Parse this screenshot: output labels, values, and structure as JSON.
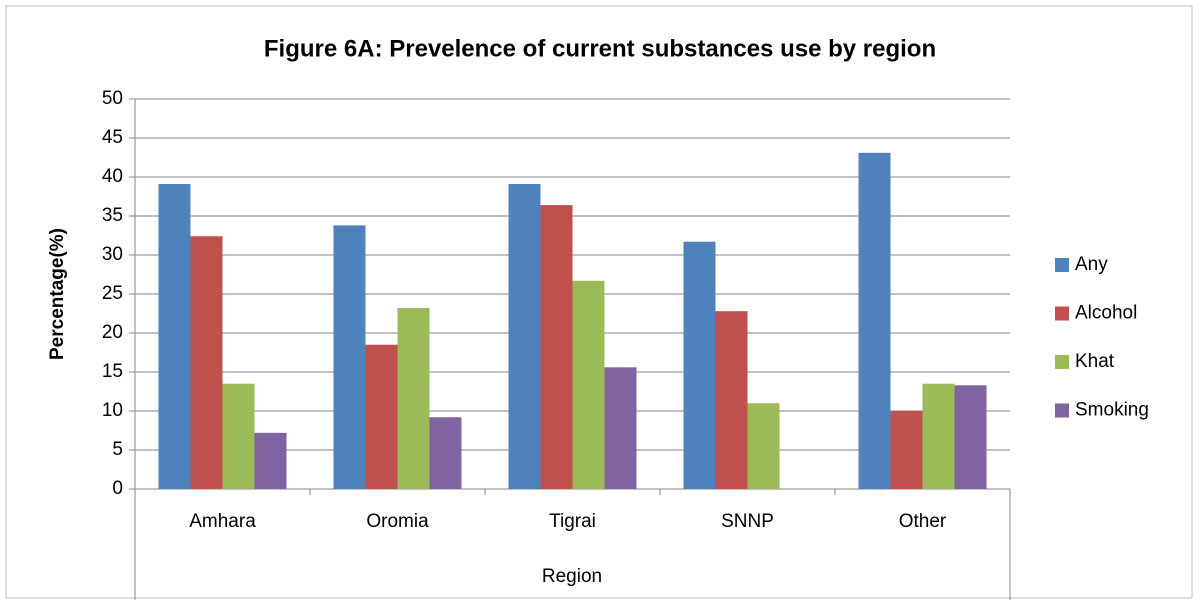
{
  "chart_data": {
    "type": "bar",
    "title": "Figure 6A: Prevelence of current substances use by region",
    "x_label": "Region",
    "y_label": "Percentage(%)",
    "categories": [
      "Amhara",
      "Oromia",
      "Tigrai",
      "SNNP",
      "Other"
    ],
    "series": [
      {
        "name": "Any",
        "color": "#4f81bd",
        "values": [
          39.1,
          33.8,
          39.1,
          31.7,
          43.1
        ]
      },
      {
        "name": "Alcohol",
        "color": "#c0504d",
        "values": [
          32.4,
          18.5,
          36.4,
          22.8,
          10.0
        ]
      },
      {
        "name": "Khat",
        "color": "#9bbb59",
        "values": [
          13.5,
          23.2,
          26.7,
          11.0,
          13.5
        ]
      },
      {
        "name": "Smoking",
        "color": "#8064a2",
        "values": [
          7.2,
          9.2,
          15.6,
          null,
          13.3
        ]
      }
    ],
    "ylim": [
      0,
      50
    ],
    "yticks": [
      0,
      5,
      10,
      15,
      20,
      25,
      30,
      35,
      40,
      45,
      50
    ],
    "grid": true,
    "legend": "right"
  }
}
